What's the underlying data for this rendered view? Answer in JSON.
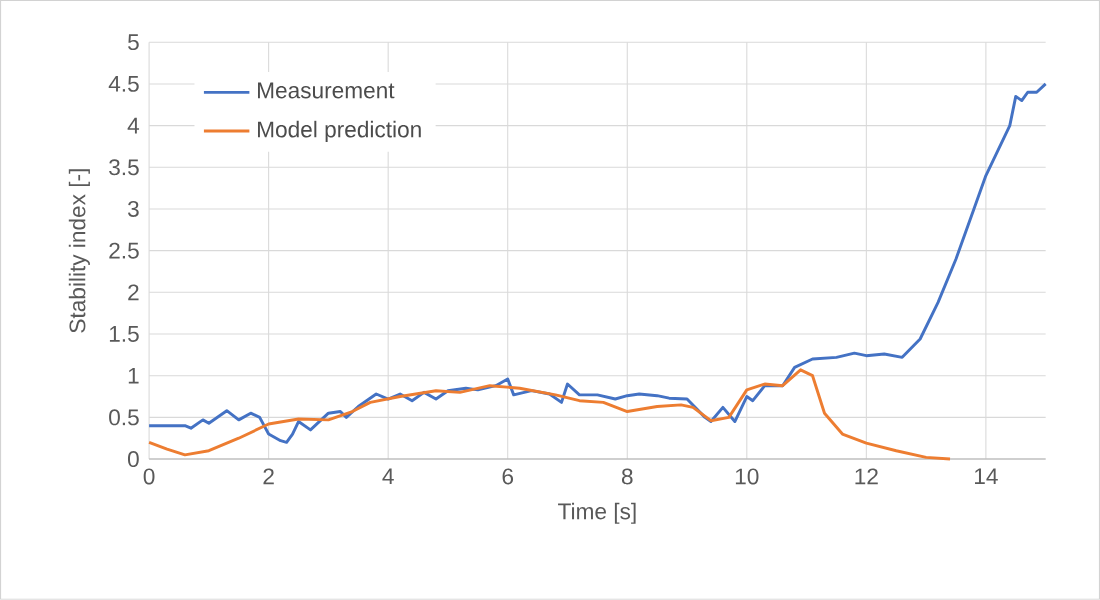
{
  "chart_data": {
    "type": "line",
    "xlabel": "Time [s]",
    "ylabel": "Stability index [-]",
    "xlim": [
      0,
      15
    ],
    "xticks": [
      0,
      2,
      4,
      6,
      8,
      10,
      12,
      14
    ],
    "ylim": [
      0,
      5
    ],
    "yticks": [
      0,
      0.5,
      1,
      1.5,
      2,
      2.5,
      3,
      3.5,
      4,
      4.5,
      5
    ],
    "grid": true,
    "legend": "top left",
    "marker": "none",
    "line_style": "solid",
    "series": [
      {
        "name": "Measurement",
        "color": "#4472c4",
        "x": [
          0,
          0.6,
          0.7,
          0.9,
          1.0,
          1.3,
          1.5,
          1.7,
          1.85,
          2.0,
          2.2,
          2.3,
          2.4,
          2.5,
          2.7,
          3.0,
          3.2,
          3.3,
          3.5,
          3.8,
          4.0,
          4.2,
          4.4,
          4.6,
          4.8,
          5.0,
          5.3,
          5.5,
          5.8,
          6.0,
          6.1,
          6.4,
          6.7,
          6.9,
          7.0,
          7.2,
          7.5,
          7.8,
          8.0,
          8.2,
          8.5,
          8.7,
          9.0,
          9.3,
          9.4,
          9.6,
          9.8,
          10.0,
          10.1,
          10.3,
          10.6,
          10.8,
          11.1,
          11.5,
          11.8,
          12.0,
          12.3,
          12.6,
          12.9,
          13.2,
          13.5,
          13.8,
          14.0,
          14.4,
          14.5,
          14.6,
          14.7,
          14.85,
          15.0
        ],
        "values": [
          0.4,
          0.4,
          0.37,
          0.47,
          0.43,
          0.58,
          0.47,
          0.55,
          0.5,
          0.3,
          0.22,
          0.2,
          0.3,
          0.45,
          0.35,
          0.55,
          0.57,
          0.5,
          0.63,
          0.78,
          0.72,
          0.78,
          0.7,
          0.8,
          0.72,
          0.82,
          0.85,
          0.83,
          0.88,
          0.96,
          0.77,
          0.82,
          0.78,
          0.68,
          0.9,
          0.77,
          0.77,
          0.72,
          0.76,
          0.78,
          0.76,
          0.73,
          0.72,
          0.5,
          0.45,
          0.62,
          0.45,
          0.75,
          0.7,
          0.88,
          0.88,
          1.1,
          1.2,
          1.22,
          1.27,
          1.24,
          1.26,
          1.22,
          1.44,
          1.88,
          2.4,
          3.0,
          3.4,
          4.0,
          4.35,
          4.3,
          4.4,
          4.4,
          4.5
        ]
      },
      {
        "name": "Model prediction",
        "color": "#ed7d31",
        "x": [
          0,
          0.3,
          0.6,
          1.0,
          1.5,
          2.0,
          2.5,
          3.0,
          3.4,
          3.7,
          4.2,
          4.8,
          5.2,
          5.7,
          6.2,
          6.8,
          7.2,
          7.6,
          8.0,
          8.5,
          8.9,
          9.1,
          9.4,
          9.7,
          10.0,
          10.3,
          10.6,
          10.9,
          11.1,
          11.3,
          11.6,
          12.0,
          12.5,
          13.0,
          13.4
        ],
        "values": [
          0.2,
          0.12,
          0.05,
          0.1,
          0.25,
          0.42,
          0.48,
          0.47,
          0.57,
          0.68,
          0.75,
          0.82,
          0.8,
          0.88,
          0.85,
          0.77,
          0.7,
          0.68,
          0.57,
          0.63,
          0.65,
          0.62,
          0.46,
          0.5,
          0.83,
          0.9,
          0.88,
          1.07,
          1.0,
          0.55,
          0.3,
          0.19,
          0.1,
          0.02,
          0
        ]
      }
    ]
  }
}
